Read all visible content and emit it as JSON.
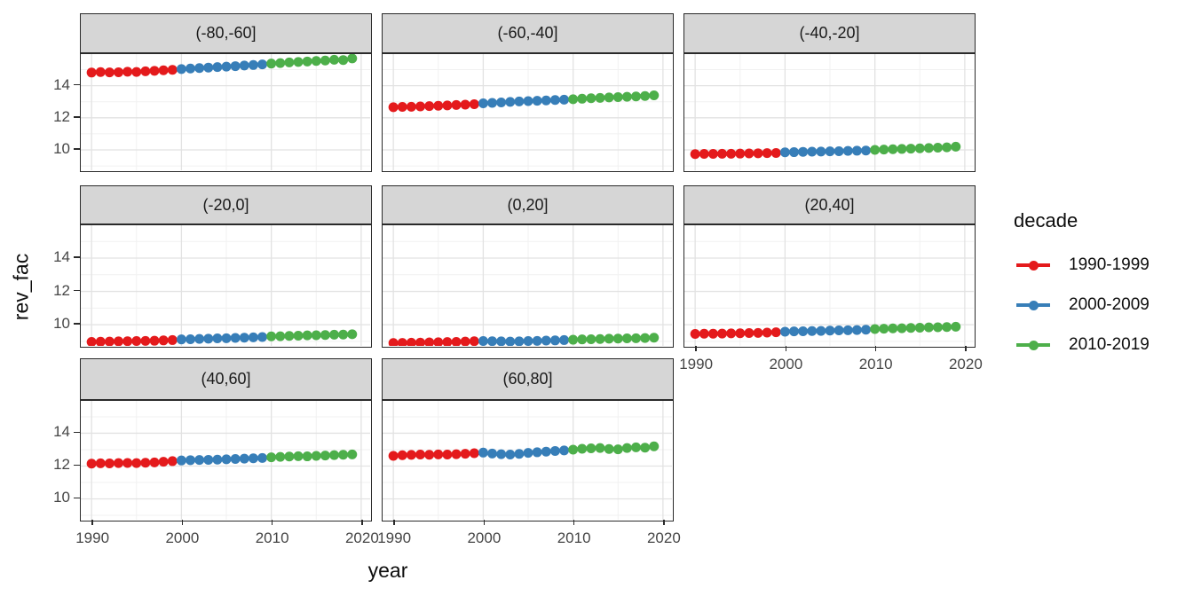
{
  "chart_data": {
    "type": "scatter",
    "title": "",
    "xlabel": "year",
    "ylabel": "rev_fac",
    "x": [
      1990,
      1991,
      1992,
      1993,
      1994,
      1995,
      1996,
      1997,
      1998,
      1999,
      2000,
      2001,
      2002,
      2003,
      2004,
      2005,
      2006,
      2007,
      2008,
      2009,
      2010,
      2011,
      2012,
      2013,
      2014,
      2015,
      2016,
      2017,
      2018,
      2019
    ],
    "x_ticks": [
      1990,
      2000,
      2010,
      2020
    ],
    "y_ticks": [
      10,
      12,
      14
    ],
    "x_minor": [
      1995,
      2005,
      2015
    ],
    "y_minor": [
      9,
      11,
      13,
      15
    ],
    "xlim": [
      1988.8,
      2020.9
    ],
    "ylim": [
      8.73,
      15.97
    ],
    "grid": true,
    "legend": {
      "title": "decade",
      "position": "right",
      "entries": [
        {
          "label": "1990-1999",
          "color": "#E41A1C",
          "from": 1990,
          "to": 1999
        },
        {
          "label": "2000-2009",
          "color": "#377EB8",
          "from": 2000,
          "to": 2009
        },
        {
          "label": "2010-2019",
          "color": "#4DAF4A",
          "from": 2010,
          "to": 2019
        }
      ]
    },
    "theme": {
      "strip_bg": "#D6D6D6",
      "panel_bg": "#FFFFFF",
      "panel_border": "#2a2a2a",
      "grid_major": "#E2E2E2",
      "grid_minor": "#F1F1F1",
      "tick_text": "#464646"
    },
    "facets": [
      {
        "label": "(-80,-60]",
        "values": [
          14.82,
          14.85,
          14.83,
          14.84,
          14.87,
          14.86,
          14.9,
          14.93,
          14.96,
          14.99,
          15.04,
          15.07,
          15.1,
          15.13,
          15.16,
          15.19,
          15.22,
          15.26,
          15.29,
          15.33,
          15.38,
          15.41,
          15.45,
          15.48,
          15.51,
          15.54,
          15.57,
          15.62,
          15.6,
          15.7
        ]
      },
      {
        "label": "(-60,-40]",
        "values": [
          12.66,
          12.68,
          12.69,
          12.71,
          12.73,
          12.75,
          12.77,
          12.8,
          12.82,
          12.85,
          12.9,
          12.93,
          12.96,
          12.99,
          13.02,
          13.04,
          13.06,
          13.08,
          13.11,
          13.13,
          13.16,
          13.19,
          13.22,
          13.24,
          13.27,
          13.29,
          13.31,
          13.33,
          13.36,
          13.4
        ]
      },
      {
        "label": "(-40,-20]",
        "values": [
          9.74,
          9.75,
          9.75,
          9.76,
          9.76,
          9.77,
          9.78,
          9.79,
          9.8,
          9.81,
          9.85,
          9.86,
          9.88,
          9.89,
          9.9,
          9.91,
          9.92,
          9.94,
          9.95,
          9.96,
          10.0,
          10.02,
          10.04,
          10.06,
          10.08,
          10.1,
          10.12,
          10.14,
          10.16,
          10.2
        ]
      },
      {
        "label": "(-20,0]",
        "values": [
          8.97,
          8.98,
          8.99,
          9.0,
          9.01,
          9.02,
          9.03,
          9.04,
          9.06,
          9.08,
          9.12,
          9.13,
          9.15,
          9.16,
          9.18,
          9.19,
          9.21,
          9.22,
          9.24,
          9.26,
          9.3,
          9.31,
          9.33,
          9.34,
          9.36,
          9.37,
          9.38,
          9.4,
          9.41,
          9.43
        ]
      },
      {
        "label": "(0,20]",
        "values": [
          8.9,
          8.91,
          8.92,
          8.93,
          8.94,
          8.95,
          8.96,
          8.97,
          8.99,
          9.01,
          9.02,
          9.01,
          9.0,
          8.99,
          9.0,
          9.02,
          9.03,
          9.05,
          9.06,
          9.08,
          9.1,
          9.12,
          9.13,
          9.14,
          9.16,
          9.17,
          9.18,
          9.19,
          9.2,
          9.22
        ]
      },
      {
        "label": "(20,40]",
        "values": [
          9.45,
          9.46,
          9.46,
          9.47,
          9.48,
          9.49,
          9.5,
          9.51,
          9.53,
          9.55,
          9.58,
          9.6,
          9.61,
          9.62,
          9.63,
          9.65,
          9.66,
          9.67,
          9.68,
          9.7,
          9.74,
          9.76,
          9.78,
          9.79,
          9.81,
          9.82,
          9.84,
          9.85,
          9.86,
          9.88
        ]
      },
      {
        "label": "(40,60]",
        "values": [
          12.15,
          12.17,
          12.16,
          12.18,
          12.19,
          12.18,
          12.2,
          12.22,
          12.26,
          12.3,
          12.34,
          12.36,
          12.37,
          12.38,
          12.39,
          12.41,
          12.43,
          12.45,
          12.47,
          12.49,
          12.53,
          12.56,
          12.58,
          12.6,
          12.59,
          12.62,
          12.64,
          12.67,
          12.69,
          12.71
        ]
      },
      {
        "label": "(60,80]",
        "values": [
          12.62,
          12.66,
          12.68,
          12.7,
          12.69,
          12.71,
          12.7,
          12.72,
          12.75,
          12.78,
          12.82,
          12.76,
          12.72,
          12.7,
          12.74,
          12.8,
          12.84,
          12.88,
          12.92,
          12.95,
          13.0,
          13.05,
          13.08,
          13.1,
          13.04,
          13.02,
          13.1,
          13.14,
          13.12,
          13.2
        ]
      }
    ]
  }
}
